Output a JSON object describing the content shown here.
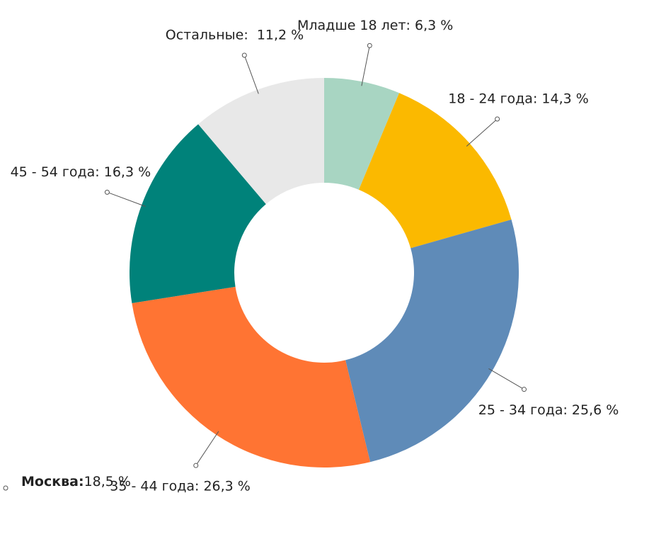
{
  "chart_data": {
    "type": "donut",
    "labels": [
      "Младше 18 лет: 6,3 %",
      "18 - 24 года: 14,3 %",
      "25 - 34 года: 25,6 %",
      "35 - 44 года: 26,3 %",
      "45 - 54 года: 16,3 %",
      "Остальные:  11,2 %"
    ],
    "values": [
      6.3,
      14.3,
      25.6,
      26.3,
      16.3,
      11.2
    ],
    "colors": [
      "#a8d5c2",
      "#fbb900",
      "#5f8bb8",
      "#ff7433",
      "#00827a",
      "#e8e8e8"
    ],
    "annotation": {
      "label": "Москва:",
      "value": 18.5,
      "value_label": "18,5 %"
    }
  }
}
